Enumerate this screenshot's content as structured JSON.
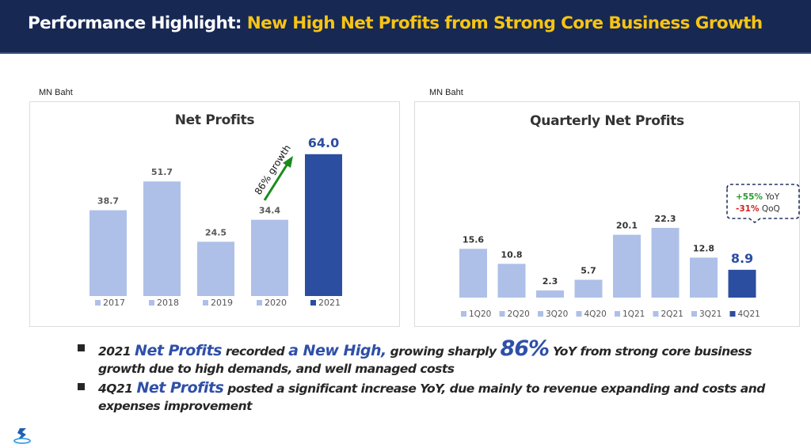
{
  "header": {
    "title_prefix": "Performance Highlight:",
    "title_highlight": "New High Net Profits from Strong Core Business Growth"
  },
  "colors": {
    "header_bg": "#172853",
    "title_white": "#ffffff",
    "title_yellow": "#f7c412",
    "bar_light": "#aec0e8",
    "bar_dark": "#2b4ea0",
    "growth_arrow": "#1a8c1a",
    "positive": "#2a9a2a",
    "negative": "#d42020",
    "highlight_text": "#2f4fa8"
  },
  "chart_data": [
    {
      "type": "bar",
      "title": "Net Profits",
      "unit_label": "MN Baht",
      "categories": [
        "2017",
        "2018",
        "2019",
        "2020",
        "2021"
      ],
      "values": [
        38.7,
        51.7,
        24.5,
        34.4,
        64.0
      ],
      "value_labels": [
        "38.7",
        "51.7",
        "24.5",
        "34.4",
        "64.0"
      ],
      "highlight_index": 4,
      "annotation": "86% growth",
      "ylim": [
        0,
        70
      ],
      "xlabel": "",
      "ylabel": "",
      "grid": false,
      "legend": "bottom"
    },
    {
      "type": "bar",
      "title": "Quarterly Net Profits",
      "unit_label": "MN Baht",
      "categories": [
        "1Q20",
        "2Q20",
        "3Q20",
        "4Q20",
        "1Q21",
        "2Q21",
        "3Q21",
        "4Q21"
      ],
      "values": [
        15.6,
        10.8,
        2.3,
        5.7,
        20.1,
        22.3,
        12.8,
        8.9
      ],
      "value_labels": [
        "15.6",
        "10.8",
        "2.3",
        "5.7",
        "20.1",
        "22.3",
        "12.8",
        "8.9"
      ],
      "highlight_index": 7,
      "callout": {
        "yoy_value": "+55%",
        "yoy_label": "YoY",
        "qoq_value": "-31%",
        "qoq_label": "QoQ"
      },
      "ylim": [
        0,
        35
      ],
      "xlabel": "",
      "ylabel": "",
      "grid": false,
      "legend": "bottom"
    }
  ],
  "bullets": [
    {
      "parts": [
        "2021 ",
        "Net Profits",
        " recorded ",
        "a New High,",
        " growing sharply ",
        "86%",
        " YoY from strong core business growth due to high demands, and well managed costs"
      ]
    },
    {
      "parts": [
        "4Q21 ",
        "Net Profits",
        " posted a significant increase YoY, due mainly to revenue expanding and costs and expenses improvement"
      ]
    }
  ],
  "logo": "company-logo-icon"
}
